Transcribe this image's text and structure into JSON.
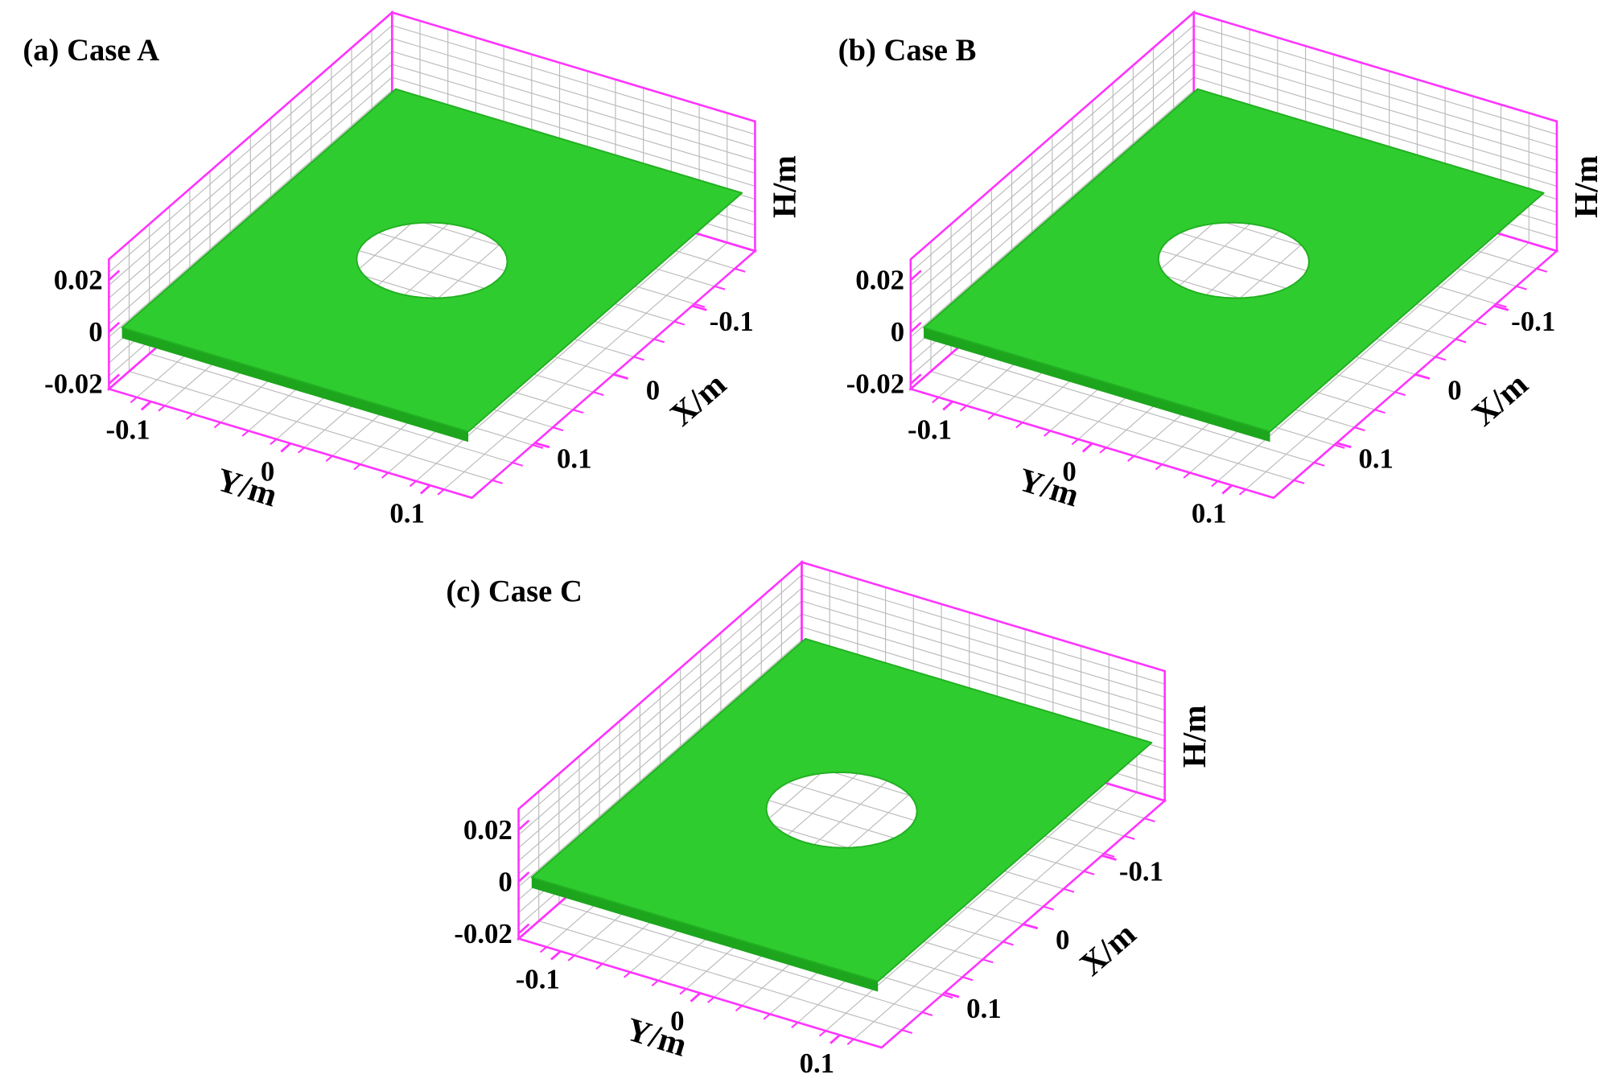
{
  "chart_data": [
    {
      "type": "surface3d",
      "title": "(a) Case A",
      "x_label": "X/m",
      "y_label": "Y/m",
      "z_label": "H/m",
      "xlim": [
        -0.18,
        0.18
      ],
      "ylim": [
        -0.13,
        0.13
      ],
      "zlim": [
        -0.022,
        0.028
      ],
      "xticks": [
        -0.1,
        0,
        0.1
      ],
      "yticks": [
        -0.1,
        0,
        0.1
      ],
      "zticks": [
        -0.02,
        0,
        0.02
      ],
      "color": "#2fcc2f",
      "box_color": "#ff33ff"
    },
    {
      "type": "surface3d",
      "title": "(b) Case B",
      "x_label": "X/m",
      "y_label": "Y/m",
      "z_label": "H/m",
      "xlim": [
        -0.18,
        0.18
      ],
      "ylim": [
        -0.13,
        0.13
      ],
      "zlim": [
        -0.022,
        0.028
      ],
      "xticks": [
        -0.1,
        0,
        0.1
      ],
      "yticks": [
        -0.1,
        0,
        0.1
      ],
      "zticks": [
        -0.02,
        0,
        0.02
      ],
      "color": "#2fcc2f",
      "box_color": "#ff33ff"
    },
    {
      "type": "surface3d",
      "title": "(c) Case C",
      "x_label": "X/m",
      "y_label": "Y/m",
      "z_label": "H/m",
      "xlim": [
        -0.18,
        0.18
      ],
      "ylim": [
        -0.13,
        0.13
      ],
      "zlim": [
        -0.022,
        0.028
      ],
      "xticks": [
        -0.1,
        0,
        0.1
      ],
      "yticks": [
        -0.1,
        0,
        0.1
      ],
      "zticks": [
        -0.02,
        0,
        0.02
      ],
      "color": "#2fcc2f",
      "box_color": "#ff33ff"
    }
  ]
}
